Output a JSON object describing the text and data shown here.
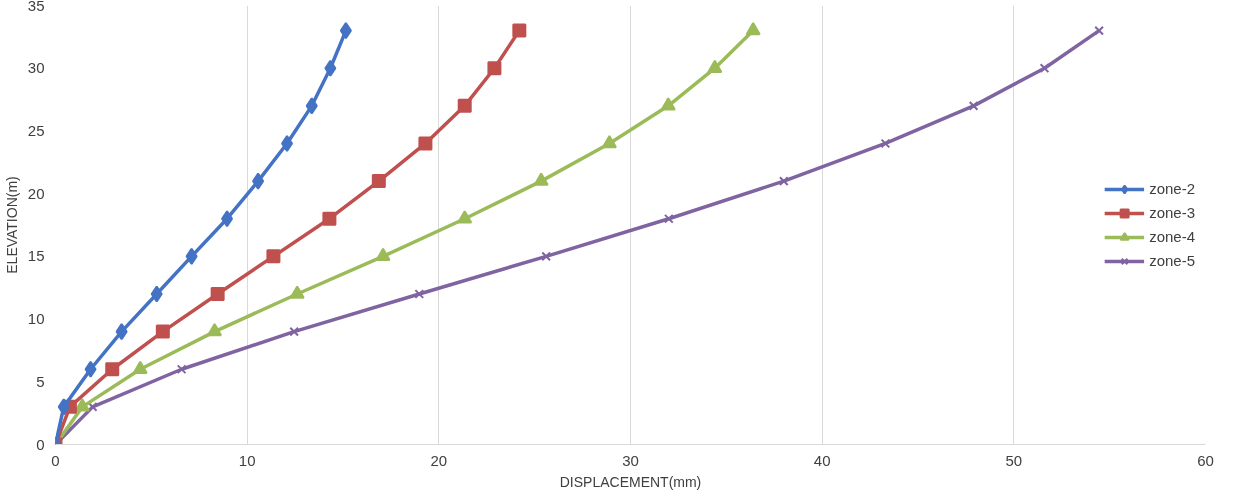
{
  "chart_data": {
    "type": "line",
    "xlabel": "DISPLACEMENT(mm)",
    "ylabel": "ELEVATION(m)",
    "xlim": [
      0,
      60
    ],
    "xticks": [
      0,
      10,
      20,
      30,
      40,
      50,
      60
    ],
    "ylim": [
      0,
      35
    ],
    "yticks": [
      0,
      5,
      10,
      15,
      20,
      25,
      30,
      35
    ],
    "grid": "x",
    "legend": "right",
    "line_style": "solid",
    "series": [
      {
        "name": "zone-2",
        "color": "#4472c4",
        "marker": "diamond",
        "x": [
          0,
          0.43,
          1.83,
          3.45,
          5.28,
          7.1,
          8.95,
          10.57,
          12.08,
          13.37,
          14.34,
          15.15
        ],
        "values": [
          0,
          3,
          6,
          9,
          12,
          15,
          18,
          21,
          24,
          27,
          30,
          33
        ]
      },
      {
        "name": "zone-3",
        "color": "#c0504d",
        "marker": "square",
        "x": [
          0,
          0.75,
          2.96,
          5.6,
          8.46,
          11.37,
          14.29,
          16.87,
          19.3,
          21.35,
          22.9,
          24.2
        ],
        "values": [
          0,
          3,
          6,
          9,
          12,
          15,
          18,
          21,
          24,
          27,
          30,
          33
        ]
      },
      {
        "name": "zone-4",
        "color": "#9bbb59",
        "marker": "triangle",
        "x": [
          0,
          1.4,
          4.42,
          8.3,
          12.61,
          17.09,
          21.35,
          25.34,
          28.9,
          31.97,
          34.4,
          36.4
        ],
        "values": [
          0,
          3,
          6,
          9,
          12,
          15,
          18,
          21,
          24,
          27,
          30,
          33
        ]
      },
      {
        "name": "zone-5",
        "color": "#8064a2",
        "marker": "cross",
        "x": [
          0,
          1.94,
          6.58,
          12.45,
          18.98,
          25.6,
          32.0,
          38.0,
          43.3,
          47.9,
          51.6,
          54.45
        ],
        "values": [
          0,
          3,
          6,
          9,
          12,
          15,
          18,
          21,
          24,
          27,
          30,
          33
        ]
      }
    ]
  }
}
